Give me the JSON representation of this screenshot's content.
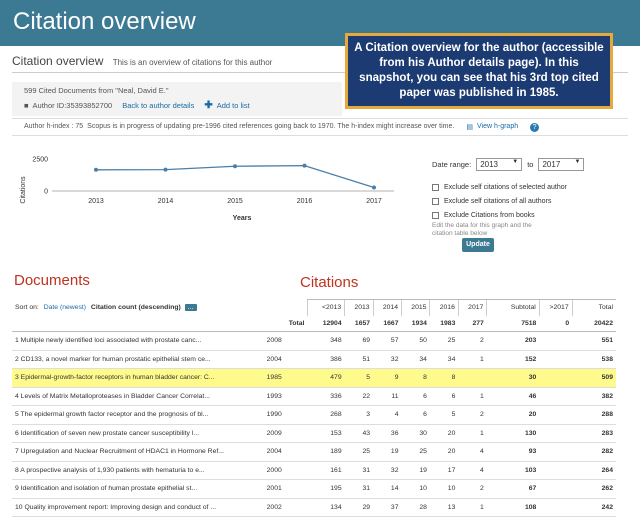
{
  "banner": {
    "title": "Citation overview"
  },
  "callout": {
    "text": "A Citation overview for the author (accessible from his Author details page). In this snapshot, you can see that his 3rd top cited paper was published in 1985."
  },
  "subheader": {
    "title": "Citation overview",
    "desc": "This is an overview of citations for this author"
  },
  "author": {
    "cited_docs": "599 Cited Documents from \"Neal, David E.\"",
    "author_id": "Author ID:35393852700",
    "back_link": "Back to author details",
    "add_list": "Add to list"
  },
  "hindex": {
    "label": "Author h-index : 75",
    "note": "Scopus is in progress of updating pre-1996 cited references going back to 1970. The h-index might increase over time.",
    "view_link": "View h-graph",
    "help": "?"
  },
  "chart_data": {
    "type": "line",
    "x": [
      2013,
      2014,
      2015,
      2016,
      2017
    ],
    "values": [
      1657,
      1667,
      1934,
      1983,
      277
    ],
    "ylabel": "Citations",
    "xlabel": "Years",
    "yticks": [
      "2500",
      "0"
    ],
    "ylim": [
      0,
      2500
    ],
    "color": "#4b7fa8"
  },
  "filters": {
    "date_range_label": "Date range:",
    "from": "2013",
    "to_label": "to",
    "to": "2017",
    "checks": [
      "Exclude self citations of selected author",
      "Exclude self citations of all authors",
      "Exclude Citations from books"
    ],
    "edit_note": "Edit the data for this graph and the citation table below",
    "update": "Update"
  },
  "sections": {
    "documents": "Documents",
    "citations": "Citations"
  },
  "sort": {
    "label": "Sort on:",
    "opt1": "Date (newest)",
    "opt2": "Citation count (descending)",
    "dots": "..."
  },
  "table": {
    "headers": [
      "<2013",
      "2013",
      "2014",
      "2015",
      "2016",
      "2017",
      "Subtotal",
      ">2017",
      "Total"
    ],
    "total_label": "Total",
    "totals": [
      "12904",
      "1657",
      "1667",
      "1934",
      "1983",
      "277",
      "7518",
      "0",
      "20422"
    ],
    "rows": [
      {
        "n": "1",
        "title": "Multiple newly identified loci associated with prostate canc...",
        "year": "2008",
        "vals": [
          "348",
          "69",
          "57",
          "50",
          "25",
          "2"
        ],
        "sub": "203",
        "after": "",
        "total": "551"
      },
      {
        "n": "2",
        "title": "CD133, a novel marker for human prostatic epithelial stem ce...",
        "year": "2004",
        "vals": [
          "386",
          "51",
          "32",
          "34",
          "34",
          "1"
        ],
        "sub": "152",
        "after": "",
        "total": "538"
      },
      {
        "n": "3",
        "title": "Epidermal-growth-factor receptors in human bladder cancer: C...",
        "year": "1985",
        "vals": [
          "479",
          "5",
          "9",
          "8",
          "8",
          ""
        ],
        "sub": "30",
        "after": "",
        "total": "509"
      },
      {
        "n": "4",
        "title": "Levels of Matrix Metalloproteases in Bladder Cancer Correlat...",
        "year": "1993",
        "vals": [
          "336",
          "22",
          "11",
          "6",
          "6",
          "1"
        ],
        "sub": "46",
        "after": "",
        "total": "382"
      },
      {
        "n": "5",
        "title": "The epidermal growth factor receptor and the prognosis of bl...",
        "year": "1990",
        "vals": [
          "268",
          "3",
          "4",
          "6",
          "5",
          "2"
        ],
        "sub": "20",
        "after": "",
        "total": "288"
      },
      {
        "n": "6",
        "title": "Identification of seven new prostate cancer susceptibility l...",
        "year": "2009",
        "vals": [
          "153",
          "43",
          "36",
          "30",
          "20",
          "1"
        ],
        "sub": "130",
        "after": "",
        "total": "283"
      },
      {
        "n": "7",
        "title": "Upregulation and Nuclear Recruitment of HDAC1 in Hormone Ref...",
        "year": "2004",
        "vals": [
          "189",
          "25",
          "19",
          "25",
          "20",
          "4"
        ],
        "sub": "93",
        "after": "",
        "total": "282"
      },
      {
        "n": "8",
        "title": "A prospective analysis of 1,930 patients with hematuria to e...",
        "year": "2000",
        "vals": [
          "161",
          "31",
          "32",
          "19",
          "17",
          "4"
        ],
        "sub": "103",
        "after": "",
        "total": "264"
      },
      {
        "n": "9",
        "title": "Identification and isolation of human prostate epithelial st...",
        "year": "2001",
        "vals": [
          "195",
          "31",
          "14",
          "10",
          "10",
          "2"
        ],
        "sub": "67",
        "after": "",
        "total": "262"
      },
      {
        "n": "10",
        "title": "Quality improvement report: Improving design and conduct of ...",
        "year": "2002",
        "vals": [
          "134",
          "29",
          "37",
          "28",
          "13",
          "1"
        ],
        "sub": "108",
        "after": "",
        "total": "242"
      }
    ]
  }
}
